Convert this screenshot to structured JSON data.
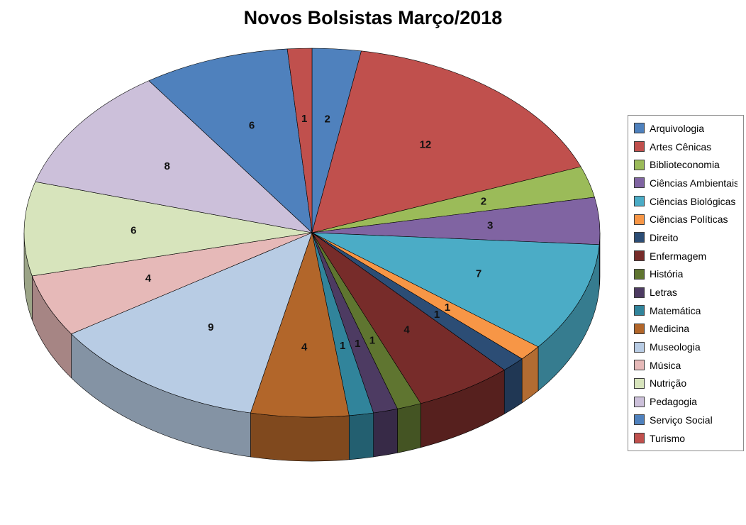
{
  "chart_data": {
    "type": "pie",
    "style": "3d-pie",
    "title": "Novos Bolsistas Março/2018",
    "legend_position": "right",
    "data_labels": "value",
    "start_angle_deg": -90,
    "direction": "clockwise",
    "categories": [
      "Arquivologia",
      "Artes Cênicas",
      "Biblioteconomia",
      "Ciências Ambientais",
      "Ciências Biológicas",
      "Ciências Políticas",
      "Direito",
      "Enfermagem",
      "História",
      "Letras",
      "Matemática",
      "Medicina",
      "Museologia",
      "Música",
      "Nutrição",
      "Pedagogia",
      "Serviço Social",
      "Turismo"
    ],
    "values": [
      2,
      12,
      2,
      3,
      7,
      1,
      1,
      4,
      1,
      1,
      1,
      4,
      9,
      4,
      6,
      8,
      6,
      1
    ],
    "colors": [
      "#4F81BD",
      "#C0504D",
      "#9BBB59",
      "#8064A2",
      "#4BACC6",
      "#F79646",
      "#2C4D75",
      "#772C2A",
      "#5F7530",
      "#4D3B62",
      "#31849B",
      "#B2662A",
      "#B8CCE4",
      "#E6B9B8",
      "#D7E4BC",
      "#CCC0DA",
      "#4F81BD",
      "#C0504D"
    ]
  }
}
